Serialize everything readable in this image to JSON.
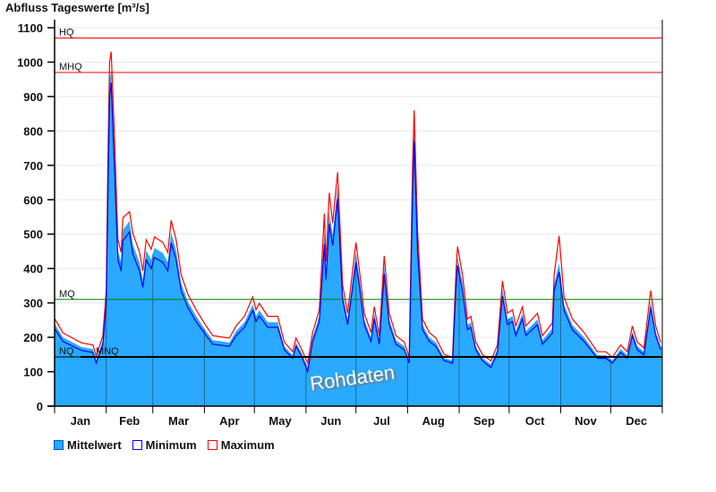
{
  "chart_data": {
    "type": "area",
    "title": "Abfluss Tageswerte [m³/s]",
    "xlabel": "",
    "ylabel": "Abfluss Tageswerte [m³/s]",
    "ylim": [
      0,
      1100
    ],
    "yticks": [
      0,
      100,
      200,
      300,
      400,
      500,
      600,
      700,
      800,
      900,
      1000,
      1100
    ],
    "xlim": [
      0,
      365
    ],
    "month_labels": [
      "Jan",
      "Feb",
      "Mar",
      "Apr",
      "May",
      "Jun",
      "Jul",
      "Aug",
      "Sep",
      "Oct",
      "Nov",
      "Dec"
    ],
    "month_starts": [
      0,
      31,
      59,
      90,
      120,
      151,
      181,
      212,
      243,
      273,
      304,
      334,
      365
    ],
    "grid": true,
    "legend_position": "bottom-left",
    "x_day": [
      0,
      5,
      16,
      23,
      25,
      29,
      31,
      32,
      33,
      34,
      36,
      38,
      40,
      41,
      45,
      47,
      51,
      53,
      55,
      58,
      60,
      65,
      68,
      70,
      73,
      76,
      80,
      85,
      91,
      95,
      105,
      109,
      114,
      119,
      121,
      123,
      128,
      134,
      138,
      143,
      145,
      148,
      152,
      155,
      159,
      162,
      163,
      165,
      167,
      170,
      173,
      176,
      181,
      183,
      186,
      190,
      192,
      195,
      198,
      201,
      205,
      210,
      213,
      215,
      216,
      218,
      221,
      225,
      229,
      234,
      239,
      241,
      242,
      245,
      248,
      250,
      253,
      257,
      262,
      266,
      269,
      272,
      275,
      277,
      281,
      283,
      290,
      293,
      299,
      300,
      303,
      306,
      311,
      318,
      326,
      331,
      335,
      340,
      344,
      347,
      350,
      354,
      358,
      361,
      364
    ],
    "series": [
      {
        "name": "Mittelwert",
        "color": "#29a9ff",
        "values": [
          240,
          200,
          172,
          166,
          135,
          192,
          315,
          642,
          946,
          975,
          730,
          453,
          418,
          512,
          538,
          470,
          418,
          367,
          452,
          426,
          460,
          445,
          418,
          505,
          452,
          357,
          305,
          262,
          218,
          192,
          185,
          218,
          244,
          296,
          262,
          279,
          244,
          244,
          174,
          148,
          185,
          158,
          114,
          200,
          262,
          505,
          392,
          565,
          497,
          640,
          330,
          252,
          445,
          374,
          252,
          200,
          270,
          192,
          408,
          252,
          192,
          174,
          133,
          653,
          810,
          479,
          236,
          200,
          185,
          140,
          133,
          356,
          434,
          356,
          236,
          244,
          174,
          140,
          122,
          166,
          340,
          252,
          262,
          218,
          270,
          218,
          252,
          192,
          226,
          356,
          415,
          296,
          236,
          200,
          148,
          148,
          133,
          166,
          148,
          218,
          174,
          158,
          305,
          218,
          174
        ]
      },
      {
        "name": "Minimum",
        "color": "#0000ff",
        "values": [
          225,
          188,
          162,
          156,
          125,
          180,
          296,
          600,
          900,
          940,
          686,
          426,
          393,
          481,
          506,
          442,
          393,
          345,
          425,
          400,
          432,
          418,
          393,
          475,
          425,
          336,
          287,
          246,
          205,
          180,
          174,
          205,
          229,
          278,
          246,
          262,
          229,
          229,
          164,
          139,
          174,
          149,
          100,
          188,
          246,
          470,
          368,
          530,
          467,
          602,
          310,
          237,
          418,
          352,
          237,
          188,
          254,
          180,
          384,
          237,
          180,
          164,
          125,
          614,
          770,
          450,
          222,
          188,
          174,
          132,
          125,
          335,
          408,
          335,
          222,
          229,
          164,
          132,
          112,
          156,
          320,
          237,
          246,
          205,
          254,
          205,
          237,
          180,
          212,
          335,
          390,
          278,
          222,
          188,
          139,
          139,
          125,
          156,
          139,
          205,
          164,
          149,
          287,
          205,
          164
        ]
      },
      {
        "name": "Maximum",
        "color": "#ff0000",
        "values": [
          255,
          213,
          184,
          178,
          145,
          205,
          335,
          700,
          1000,
          1030,
          780,
          485,
          447,
          548,
          565,
          503,
          447,
          393,
          484,
          456,
          492,
          476,
          447,
          540,
          484,
          382,
          326,
          280,
          233,
          205,
          198,
          233,
          261,
          317,
          280,
          299,
          261,
          261,
          186,
          158,
          198,
          169,
          125,
          214,
          280,
          560,
          420,
          620,
          532,
          680,
          353,
          270,
          476,
          400,
          270,
          214,
          289,
          205,
          437,
          270,
          205,
          186,
          142,
          700,
          860,
          512,
          253,
          214,
          198,
          150,
          142,
          381,
          464,
          381,
          253,
          261,
          186,
          150,
          131,
          178,
          364,
          270,
          280,
          233,
          289,
          233,
          270,
          205,
          242,
          381,
          495,
          317,
          253,
          214,
          158,
          158,
          142,
          178,
          158,
          233,
          186,
          169,
          336,
          233,
          186
        ]
      }
    ],
    "reference_lines": [
      {
        "label": "HQ",
        "value": 1070,
        "color": "#ff0000"
      },
      {
        "label": "MHQ",
        "value": 970,
        "color": "#ff0000"
      },
      {
        "label": "MQ",
        "value": 310,
        "color": "#008000"
      },
      {
        "label": "NQ",
        "value": 143,
        "color": "#000000"
      },
      {
        "label": "MNQ",
        "value": 143,
        "color": "#000000"
      }
    ],
    "watermark": "Rohdaten"
  }
}
